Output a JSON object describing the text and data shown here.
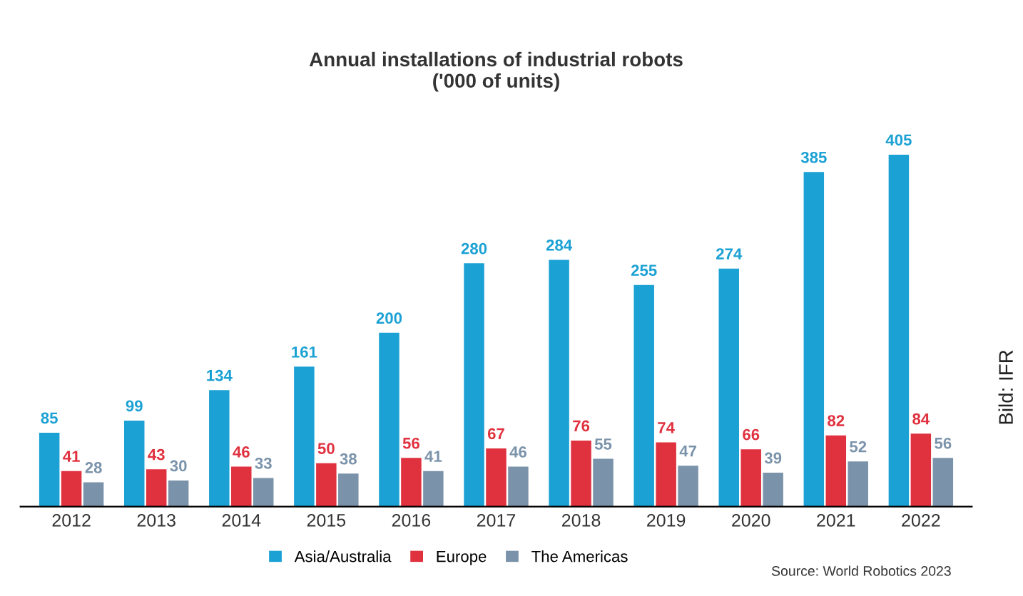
{
  "chart_data": {
    "type": "bar",
    "title": "Annual installations of industrial robots\n('000 of units)",
    "categories": [
      "2012",
      "2013",
      "2014",
      "2015",
      "2016",
      "2017",
      "2018",
      "2019",
      "2020",
      "2021",
      "2022"
    ],
    "series": [
      {
        "name": "Asia/Australia",
        "color": "#1ba1d4",
        "values": [
          85,
          99,
          134,
          161,
          200,
          280,
          284,
          255,
          274,
          385,
          405
        ]
      },
      {
        "name": "Europe",
        "color": "#e0313f",
        "values": [
          41,
          43,
          46,
          50,
          56,
          67,
          76,
          74,
          66,
          82,
          84
        ]
      },
      {
        "name": "The Americas",
        "color": "#7b93aa",
        "values": [
          28,
          30,
          33,
          38,
          41,
          46,
          55,
          47,
          39,
          52,
          56
        ]
      }
    ],
    "data_labels": true,
    "legend": "bottom",
    "grid": false,
    "annotations": [
      "Source: World Robotics 2023",
      "Bild: IFR"
    ]
  }
}
